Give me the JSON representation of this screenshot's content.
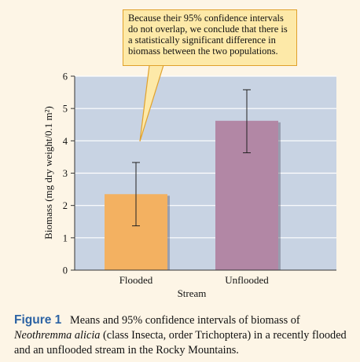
{
  "chart_data": {
    "type": "bar",
    "categories": [
      "Flooded",
      "Unflooded"
    ],
    "values": [
      2.35,
      4.62
    ],
    "error_bars": [
      {
        "low": 1.37,
        "high": 3.33
      },
      {
        "low": 3.63,
        "high": 5.58
      }
    ],
    "xlabel": "Stream",
    "ylabel": "Biomass (mg dry weight/0.1 m²)",
    "ylim": [
      0,
      6
    ],
    "yticks": [
      "0",
      "1",
      "2",
      "3",
      "4",
      "5",
      "6"
    ],
    "grid": true,
    "bar_colors": [
      "#f3b161",
      "#b287a5"
    ],
    "plot_background": "#c8d3e3"
  },
  "callout": {
    "text": "Because their 95% confidence intervals do not overlap, we conclude that there is a statistically significant difference in biomass between the two populations."
  },
  "caption": {
    "label": "Figure 1",
    "text_a": "Means and 95% confidence intervals of biomass of",
    "species": "Neothremma alicia",
    "text_b": "(class Insecta, order Trichoptera) in a recently flooded and an unflooded stream in the Rocky Mountains."
  }
}
